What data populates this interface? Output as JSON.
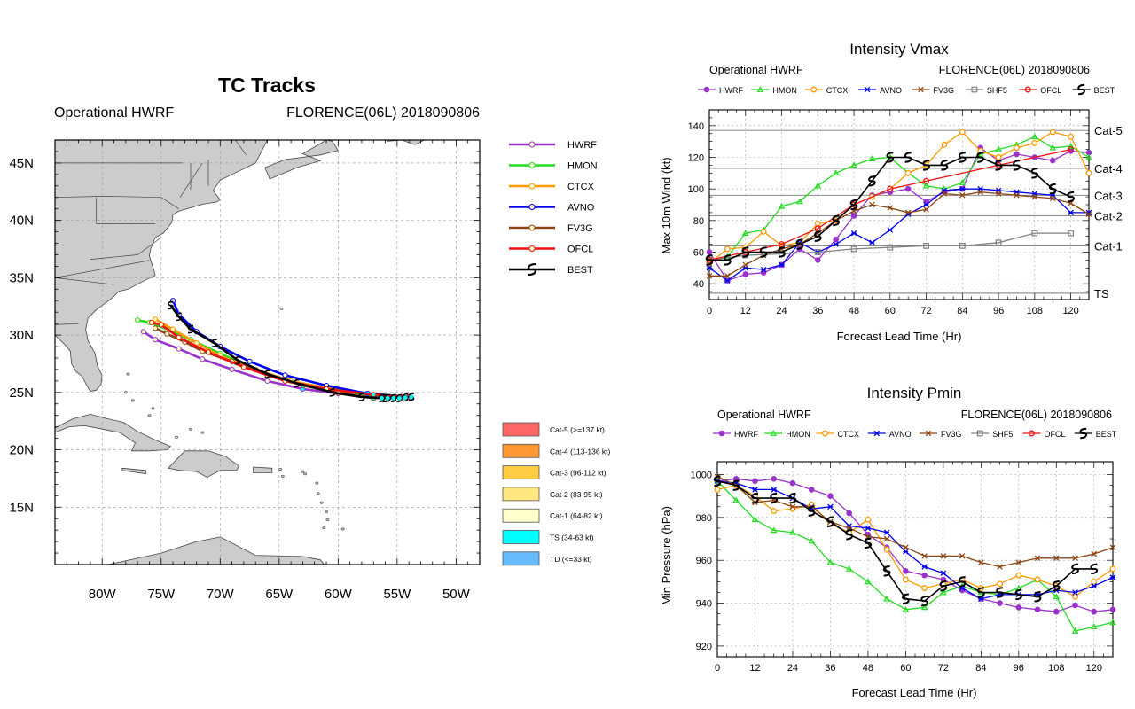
{
  "colors": {
    "HWRF": "#9933cc",
    "HMON": "#22dd22",
    "CTCX": "#ff9900",
    "AVNO": "#0000ee",
    "FV3G": "#8b4513",
    "SHF5": "#808080",
    "OFCL": "#ee1111",
    "BEST": "#000000",
    "land": "#cccccc"
  },
  "chart_data": [
    {
      "type": "scatter",
      "title": "TC Tracks",
      "left_label": "Operational HWRF",
      "right_label": "FLORENCE(06L) 2018090806",
      "xlim": [
        -84,
        -48
      ],
      "ylim": [
        10,
        47
      ],
      "x_ticks": [
        "80W",
        "75W",
        "70W",
        "65W",
        "60W",
        "55W",
        "50W"
      ],
      "y_ticks": [
        "15N",
        "20N",
        "25N",
        "30N",
        "35N",
        "40N",
        "45N"
      ],
      "legend": [
        "HWRF",
        "HMON",
        "CTCX",
        "AVNO",
        "FV3G",
        "OFCL",
        "BEST"
      ],
      "intensity_legend": [
        "Cat-5 (>=137 kt)",
        "Cat-4 (113-136 kt)",
        "Cat-3 (96-112 kt)",
        "Cat-2 (83-95 kt)",
        "Cat-1 (64-82 kt)",
        "TS (34-63 kt)",
        "TD (<=33 kt)"
      ],
      "intensity_colors": [
        "#ff6666",
        "#ff9933",
        "#ffcc44",
        "#ffe680",
        "#ffffcc",
        "#00ffff",
        "#66bbff"
      ],
      "tracks": [
        {
          "name": "HWRF",
          "points": [
            [
              -54.0,
              24.6
            ],
            [
              -57.0,
              24.7
            ],
            [
              -60.0,
              24.9
            ],
            [
              -63.0,
              25.3
            ],
            [
              -66.0,
              26.0
            ],
            [
              -69.0,
              27.0
            ],
            [
              -71.5,
              27.9
            ],
            [
              -73.5,
              28.8
            ],
            [
              -75.5,
              29.6
            ],
            [
              -76.5,
              30.3
            ]
          ]
        },
        {
          "name": "HMON",
          "points": [
            [
              -54.0,
              24.6
            ],
            [
              -57.5,
              24.8
            ],
            [
              -61.0,
              25.3
            ],
            [
              -64.0,
              26.0
            ],
            [
              -67.0,
              27.0
            ],
            [
              -70.0,
              28.4
            ],
            [
              -72.5,
              29.6
            ],
            [
              -74.5,
              30.5
            ],
            [
              -76.0,
              31.1
            ],
            [
              -77.0,
              31.3
            ]
          ]
        },
        {
          "name": "CTCX",
          "points": [
            [
              -54.0,
              24.6
            ],
            [
              -57.5,
              24.9
            ],
            [
              -61.0,
              25.4
            ],
            [
              -64.0,
              26.0
            ],
            [
              -67.0,
              27.0
            ],
            [
              -70.0,
              28.2
            ],
            [
              -72.0,
              29.3
            ],
            [
              -74.0,
              30.5
            ],
            [
              -75.5,
              31.4
            ]
          ]
        },
        {
          "name": "AVNO",
          "points": [
            [
              -54.0,
              24.6
            ],
            [
              -57.5,
              24.9
            ],
            [
              -61.0,
              25.6
            ],
            [
              -64.5,
              26.5
            ],
            [
              -67.5,
              27.7
            ],
            [
              -70.0,
              29.0
            ],
            [
              -72.0,
              30.3
            ],
            [
              -73.5,
              31.8
            ],
            [
              -74.0,
              33.0
            ]
          ]
        },
        {
          "name": "FV3G",
          "points": [
            [
              -54.0,
              24.6
            ],
            [
              -57.0,
              24.5
            ],
            [
              -60.0,
              25.0
            ],
            [
              -63.0,
              25.6
            ],
            [
              -66.0,
              26.5
            ],
            [
              -69.0,
              27.7
            ],
            [
              -71.5,
              28.6
            ],
            [
              -73.0,
              29.4
            ],
            [
              -74.5,
              30.1
            ],
            [
              -75.5,
              30.6
            ]
          ]
        },
        {
          "name": "OFCL",
          "points": [
            [
              -54.0,
              24.6
            ],
            [
              -57.0,
              24.8
            ],
            [
              -61.0,
              25.3
            ],
            [
              -64.5,
              26.0
            ],
            [
              -68.0,
              27.2
            ],
            [
              -71.0,
              28.5
            ],
            [
              -73.5,
              29.8
            ],
            [
              -75.0,
              30.9
            ],
            [
              -75.8,
              31.1
            ]
          ]
        },
        {
          "name": "BEST",
          "points": [
            [
              -53.8,
              24.6
            ],
            [
              -56.0,
              24.5
            ],
            [
              -58.0,
              24.6
            ],
            [
              -60.5,
              25.0
            ],
            [
              -63.5,
              25.8
            ],
            [
              -66.0,
              26.6
            ],
            [
              -68.5,
              27.8
            ],
            [
              -70.5,
              29.3
            ],
            [
              -72.5,
              30.5
            ],
            [
              -73.5,
              31.6
            ],
            [
              -74.2,
              32.6
            ]
          ]
        }
      ]
    },
    {
      "type": "line",
      "title": "Intensity Vmax",
      "left_label": "Operational HWRF",
      "right_label": "FLORENCE(06L) 2018090806",
      "xlabel": "Forecast Lead Time (Hr)",
      "ylabel": "Max 10m Wind (kt)",
      "xlim": [
        0,
        126
      ],
      "ylim": [
        30,
        150
      ],
      "x_ticks": [
        0,
        12,
        24,
        36,
        48,
        60,
        72,
        84,
        96,
        108,
        120
      ],
      "y_ticks": [
        40,
        60,
        80,
        100,
        120,
        140
      ],
      "thresholds": [
        {
          "label": "Cat-5",
          "value": 137
        },
        {
          "label": "Cat-4",
          "value": 113
        },
        {
          "label": "Cat-3",
          "value": 96
        },
        {
          "label": "Cat-2",
          "value": 83
        },
        {
          "label": "Cat-1",
          "value": 64
        },
        {
          "label": "TS",
          "value": 34
        }
      ],
      "series": [
        {
          "name": "HWRF",
          "x": [
            0,
            6,
            12,
            18,
            24,
            30,
            36,
            42,
            48,
            54,
            60,
            66,
            72,
            78,
            84,
            90,
            96,
            102,
            108,
            114,
            120,
            126
          ],
          "values": [
            60,
            42,
            46,
            47,
            52,
            62,
            55,
            68,
            83,
            96,
            98,
            100,
            92,
            98,
            100,
            126,
            118,
            122,
            120,
            118,
            124,
            123
          ]
        },
        {
          "name": "HMON",
          "x": [
            0,
            6,
            12,
            18,
            24,
            30,
            36,
            42,
            48,
            54,
            60,
            66,
            72,
            78,
            84,
            90,
            96,
            102,
            108,
            114,
            120,
            126
          ],
          "values": [
            55,
            57,
            72,
            74,
            89,
            92,
            102,
            110,
            115,
            119,
            120,
            110,
            102,
            100,
            104,
            122,
            125,
            128,
            133,
            126,
            127,
            120
          ]
        },
        {
          "name": "CTCX",
          "x": [
            0,
            6,
            12,
            18,
            24,
            30,
            36,
            42,
            48,
            54,
            60,
            66,
            72,
            78,
            84,
            90,
            96,
            102,
            108,
            114,
            120,
            126
          ],
          "values": [
            53,
            62,
            63,
            73,
            64,
            66,
            78,
            80,
            90,
            95,
            100,
            110,
            115,
            128,
            136,
            124,
            120,
            126,
            129,
            136,
            133,
            110
          ]
        },
        {
          "name": "AVNO",
          "x": [
            0,
            6,
            12,
            18,
            24,
            30,
            36,
            42,
            48,
            54,
            60,
            66,
            72,
            78,
            84,
            90,
            96,
            102,
            108,
            114,
            120,
            126
          ],
          "values": [
            50,
            42,
            50,
            49,
            52,
            66,
            60,
            65,
            72,
            66,
            74,
            84,
            90,
            99,
            100,
            100,
            99,
            98,
            97,
            96,
            85,
            85
          ]
        },
        {
          "name": "FV3G",
          "x": [
            0,
            6,
            12,
            18,
            24,
            30,
            36,
            42,
            48,
            54,
            60,
            66,
            72,
            78,
            84,
            90,
            96,
            102,
            108,
            114,
            120,
            126
          ],
          "values": [
            45,
            45,
            52,
            58,
            62,
            65,
            72,
            80,
            86,
            90,
            88,
            85,
            87,
            97,
            96,
            98,
            97,
            96,
            95,
            94,
            91,
            84
          ]
        },
        {
          "name": "SHF5",
          "x": [
            0,
            12,
            24,
            36,
            48,
            60,
            72,
            84,
            96,
            108,
            120
          ],
          "values": [
            55,
            58,
            59,
            60,
            62,
            63,
            64,
            64,
            66,
            72,
            72
          ]
        },
        {
          "name": "OFCL",
          "x": [
            0,
            12,
            24,
            36,
            48,
            60,
            72,
            96,
            120
          ],
          "values": [
            55,
            60,
            65,
            75,
            90,
            100,
            105,
            115,
            125
          ]
        },
        {
          "name": "BEST",
          "x": [
            0,
            6,
            12,
            18,
            24,
            30,
            36,
            42,
            48,
            54,
            60,
            66,
            72,
            78,
            84,
            90,
            96,
            102,
            108,
            114,
            120
          ],
          "values": [
            55,
            55,
            60,
            60,
            60,
            65,
            70,
            80,
            90,
            105,
            120,
            120,
            115,
            115,
            120,
            120,
            115,
            115,
            110,
            100,
            95
          ]
        }
      ]
    },
    {
      "type": "line",
      "title": "Intensity Pmin",
      "left_label": "Operational HWRF",
      "right_label": "FLORENCE(06L) 2018090806",
      "xlabel": "Forecast Lead Time (Hr)",
      "ylabel": "Min Pressure (hPa)",
      "xlim": [
        0,
        126
      ],
      "ylim": [
        915,
        1006
      ],
      "x_ticks": [
        0,
        12,
        24,
        36,
        48,
        60,
        72,
        84,
        96,
        108,
        120
      ],
      "y_ticks": [
        920,
        940,
        960,
        980,
        1000
      ],
      "series": [
        {
          "name": "HWRF",
          "x": [
            0,
            6,
            12,
            18,
            24,
            30,
            36,
            42,
            48,
            54,
            60,
            66,
            72,
            78,
            84,
            90,
            96,
            102,
            108,
            114,
            120,
            126
          ],
          "values": [
            997,
            998,
            997,
            998,
            996,
            993,
            990,
            982,
            972,
            966,
            955,
            953,
            951,
            946,
            942,
            940,
            938,
            937,
            936,
            939,
            936,
            937
          ]
        },
        {
          "name": "HMON",
          "x": [
            0,
            6,
            12,
            18,
            24,
            30,
            36,
            42,
            48,
            54,
            60,
            66,
            72,
            78,
            84,
            90,
            96,
            102,
            108,
            114,
            120,
            126
          ],
          "values": [
            997,
            988,
            979,
            974,
            973,
            969,
            959,
            956,
            950,
            942,
            937,
            938,
            945,
            948,
            945,
            944,
            947,
            951,
            943,
            927,
            929,
            931
          ]
        },
        {
          "name": "CTCX",
          "x": [
            0,
            6,
            12,
            18,
            24,
            30,
            36,
            42,
            48,
            54,
            60,
            66,
            72,
            78,
            84,
            90,
            96,
            102,
            108,
            114,
            120,
            126
          ],
          "values": [
            993,
            995,
            990,
            983,
            984,
            986,
            977,
            973,
            979,
            965,
            951,
            947,
            949,
            951,
            947,
            949,
            953,
            951,
            948,
            943,
            950,
            956
          ]
        },
        {
          "name": "AVNO",
          "x": [
            0,
            6,
            12,
            18,
            24,
            30,
            36,
            42,
            48,
            54,
            60,
            66,
            72,
            78,
            84,
            90,
            96,
            102,
            108,
            114,
            120,
            126
          ],
          "values": [
            997,
            996,
            993,
            993,
            989,
            984,
            985,
            976,
            975,
            973,
            964,
            957,
            954,
            947,
            942,
            944,
            944,
            944,
            946,
            945,
            948,
            952
          ]
        },
        {
          "name": "FV3G",
          "x": [
            0,
            6,
            12,
            18,
            24,
            30,
            36,
            42,
            48,
            54,
            60,
            66,
            72,
            78,
            84,
            90,
            96,
            102,
            108,
            114,
            120,
            126
          ],
          "values": [
            999,
            995,
            987,
            988,
            985,
            985,
            978,
            975,
            971,
            970,
            966,
            962,
            962,
            962,
            959,
            957,
            959,
            961,
            961,
            961,
            963,
            966
          ]
        },
        {
          "name": "BEST",
          "x": [
            0,
            6,
            12,
            18,
            24,
            30,
            36,
            42,
            48,
            54,
            60,
            66,
            72,
            78,
            84,
            90,
            96,
            102,
            108,
            114,
            120
          ],
          "values": [
            997,
            995,
            989,
            989,
            989,
            983,
            978,
            972,
            968,
            955,
            942,
            941,
            948,
            950,
            945,
            945,
            944,
            943,
            948,
            956,
            956
          ]
        }
      ]
    }
  ]
}
